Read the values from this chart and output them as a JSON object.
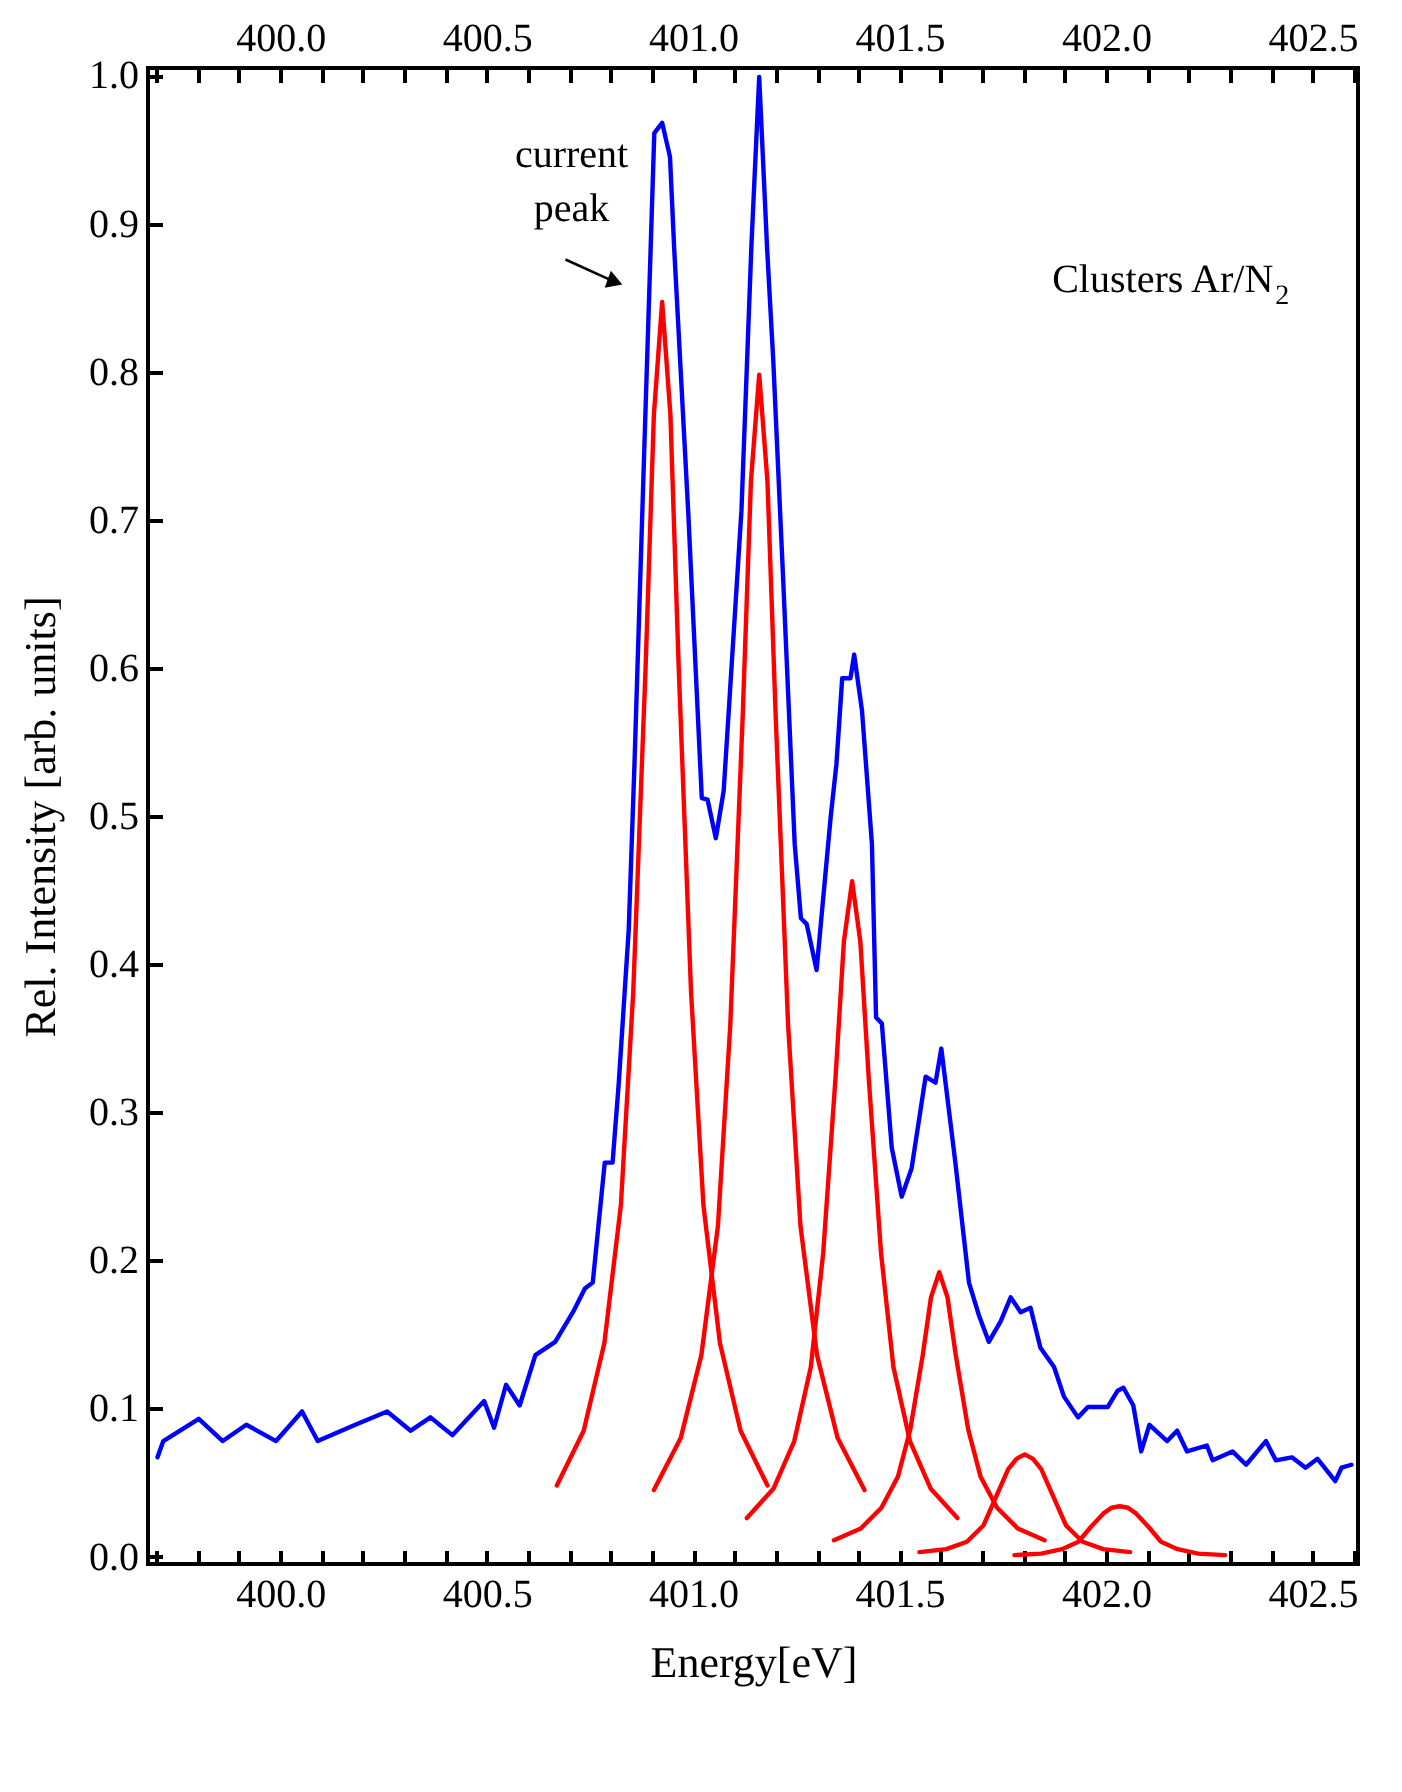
{
  "chart_data": {
    "type": "line",
    "xlabel": "Energy[eV]",
    "ylabel": "Rel. Intensity [arb. units]",
    "xlim": [
      399.68,
      402.61
    ],
    "ylim": [
      -0.005,
      1.005
    ],
    "xticks": [
      {
        "value": 399.7,
        "label": null
      },
      {
        "value": 399.8,
        "label": null
      },
      {
        "value": 399.9,
        "label": null
      },
      {
        "value": 400,
        "label": "400.0"
      },
      {
        "value": 400.1,
        "label": null
      },
      {
        "value": 400.2,
        "label": null
      },
      {
        "value": 400.3,
        "label": null
      },
      {
        "value": 400.4,
        "label": null
      },
      {
        "value": 400.5,
        "label": "400.5"
      },
      {
        "value": 400.6,
        "label": null
      },
      {
        "value": 400.7,
        "label": null
      },
      {
        "value": 400.8,
        "label": null
      },
      {
        "value": 400.9,
        "label": null
      },
      {
        "value": 401,
        "label": "401.0"
      },
      {
        "value": 401.1,
        "label": null
      },
      {
        "value": 401.2,
        "label": null
      },
      {
        "value": 401.3,
        "label": null
      },
      {
        "value": 401.4,
        "label": null
      },
      {
        "value": 401.5,
        "label": "401.5"
      },
      {
        "value": 401.6,
        "label": null
      },
      {
        "value": 401.7,
        "label": null
      },
      {
        "value": 401.8,
        "label": null
      },
      {
        "value": 401.9,
        "label": null
      },
      {
        "value": 402,
        "label": "402.0"
      },
      {
        "value": 402.1,
        "label": null
      },
      {
        "value": 402.2,
        "label": null
      },
      {
        "value": 402.3,
        "label": null
      },
      {
        "value": 402.4,
        "label": null
      },
      {
        "value": 402.5,
        "label": "402.5"
      },
      {
        "value": 402.6,
        "label": null
      }
    ],
    "x2lim": [
      399.68,
      402.61
    ],
    "x2ticks": [
      {
        "value": 399.7,
        "label": null
      },
      {
        "value": 399.8,
        "label": null
      },
      {
        "value": 399.9,
        "label": null
      },
      {
        "value": 400,
        "label": "400.0"
      },
      {
        "value": 400.1,
        "label": null
      },
      {
        "value": 400.2,
        "label": null
      },
      {
        "value": 400.3,
        "label": null
      },
      {
        "value": 400.4,
        "label": null
      },
      {
        "value": 400.5,
        "label": "400.5"
      },
      {
        "value": 400.6,
        "label": null
      },
      {
        "value": 400.7,
        "label": null
      },
      {
        "value": 400.8,
        "label": null
      },
      {
        "value": 400.9,
        "label": null
      },
      {
        "value": 401,
        "label": "401.0"
      },
      {
        "value": 401.1,
        "label": null
      },
      {
        "value": 401.2,
        "label": null
      },
      {
        "value": 401.3,
        "label": null
      },
      {
        "value": 401.4,
        "label": null
      },
      {
        "value": 401.5,
        "label": "401.5"
      },
      {
        "value": 401.6,
        "label": null
      },
      {
        "value": 401.7,
        "label": null
      },
      {
        "value": 401.8,
        "label": null
      },
      {
        "value": 401.9,
        "label": null
      },
      {
        "value": 402,
        "label": "402.0"
      },
      {
        "value": 402.1,
        "label": null
      },
      {
        "value": 402.2,
        "label": null
      },
      {
        "value": 402.3,
        "label": null
      },
      {
        "value": 402.4,
        "label": null
      },
      {
        "value": 402.5,
        "label": "402.5"
      },
      {
        "value": 402.6,
        "label": null
      }
    ],
    "yticks": [
      {
        "value": 0,
        "label": "0.0"
      },
      {
        "value": 0.1,
        "label": "0.1"
      },
      {
        "value": 0.2,
        "label": "0.2"
      },
      {
        "value": 0.3,
        "label": "0.3"
      },
      {
        "value": 0.4,
        "label": "0.4"
      },
      {
        "value": 0.5,
        "label": "0.5"
      },
      {
        "value": 0.6,
        "label": "0.6"
      },
      {
        "value": 0.7,
        "label": "0.7"
      },
      {
        "value": 0.8,
        "label": "0.8"
      },
      {
        "value": 0.9,
        "label": "0.9"
      },
      {
        "value": 1,
        "label": "1.0"
      }
    ],
    "annotations": [
      "current peak",
      "Clusters Ar/N$_{2}$"
    ],
    "series": [
      {
        "color": "#0000ff",
        "x": [
          399.703,
          399.717,
          399.803,
          399.861,
          399.918,
          399.99,
          400.053,
          400.091,
          400.182,
          400.259,
          400.316,
          400.364,
          400.417,
          400.494,
          400.518,
          400.547,
          400.58,
          400.618,
          400.666,
          400.709,
          400.738,
          400.757,
          400.786,
          400.805,
          400.82,
          400.844,
          400.858,
          400.882,
          400.906,
          400.925,
          400.944,
          400.954,
          400.988,
          401.021,
          401.035,
          401.055,
          401.074,
          401.117,
          401.141,
          401.16,
          401.179,
          401.194,
          401.218,
          401.246,
          401.261,
          401.275,
          401.299,
          401.333,
          401.347,
          401.361,
          401.381,
          401.39,
          401.409,
          401.433,
          401.443,
          401.457,
          401.481,
          401.505,
          401.529,
          401.563,
          401.587,
          401.601,
          401.635,
          401.668,
          401.692,
          401.716,
          401.745,
          401.769,
          401.793,
          401.817,
          401.841,
          401.874,
          401.898,
          401.932,
          401.956,
          402.004,
          402.028,
          402.042,
          402.066,
          402.085,
          402.105,
          402.148,
          402.172,
          402.196,
          402.244,
          402.258,
          402.306,
          402.339,
          402.387,
          402.411,
          402.45,
          402.483,
          402.512,
          402.555,
          402.57,
          402.594
        ],
        "values": [
          0.067,
          0.078,
          0.093,
          0.078,
          0.089,
          0.078,
          0.098,
          0.078,
          0.089,
          0.098,
          0.085,
          0.094,
          0.082,
          0.105,
          0.087,
          0.116,
          0.102,
          0.136,
          0.145,
          0.165,
          0.181,
          0.185,
          0.266,
          0.266,
          0.32,
          0.423,
          0.535,
          0.75,
          0.961,
          0.968,
          0.945,
          0.884,
          0.706,
          0.512,
          0.511,
          0.485,
          0.517,
          0.706,
          0.884,
          0.999,
          0.884,
          0.808,
          0.66,
          0.481,
          0.431,
          0.427,
          0.396,
          0.499,
          0.535,
          0.593,
          0.593,
          0.609,
          0.571,
          0.481,
          0.364,
          0.36,
          0.276,
          0.243,
          0.262,
          0.324,
          0.32,
          0.343,
          0.266,
          0.185,
          0.163,
          0.145,
          0.159,
          0.175,
          0.165,
          0.168,
          0.141,
          0.128,
          0.108,
          0.094,
          0.101,
          0.101,
          0.112,
          0.114,
          0.102,
          0.071,
          0.089,
          0.078,
          0.085,
          0.071,
          0.075,
          0.065,
          0.071,
          0.062,
          0.078,
          0.065,
          0.067,
          0.06,
          0.066,
          0.051,
          0.06,
          0.062
        ]
      },
      {
        "color": "#ff0000",
        "x": [
          400.67,
          400.735,
          400.785,
          400.825,
          400.855,
          400.885,
          400.905,
          400.925,
          400.945,
          400.965,
          400.995,
          401.025,
          401.065,
          401.115,
          401.18
        ],
        "values": [
          0.048,
          0.085,
          0.144,
          0.237,
          0.381,
          0.601,
          0.771,
          0.847,
          0.771,
          0.601,
          0.381,
          0.237,
          0.144,
          0.085,
          0.048
        ]
      },
      {
        "color": "#ff0000",
        "x": [
          400.905,
          400.97,
          401.02,
          401.06,
          401.09,
          401.12,
          401.14,
          401.16,
          401.18,
          401.2,
          401.23,
          401.26,
          401.3,
          401.35,
          401.415
        ],
        "values": [
          0.045,
          0.08,
          0.136,
          0.223,
          0.359,
          0.567,
          0.726,
          0.798,
          0.726,
          0.567,
          0.359,
          0.223,
          0.136,
          0.08,
          0.045
        ]
      },
      {
        "color": "#ff0000",
        "x": [
          401.13,
          401.195,
          401.245,
          401.285,
          401.315,
          401.345,
          401.365,
          401.385,
          401.405,
          401.425,
          401.455,
          401.485,
          401.525,
          401.575,
          401.64
        ],
        "values": [
          0.026,
          0.046,
          0.078,
          0.128,
          0.205,
          0.324,
          0.415,
          0.456,
          0.415,
          0.324,
          0.205,
          0.128,
          0.078,
          0.046,
          0.026
        ]
      },
      {
        "color": "#ff0000",
        "x": [
          401.341,
          401.406,
          401.456,
          401.496,
          401.526,
          401.556,
          401.576,
          401.596,
          401.616,
          401.636,
          401.666,
          401.696,
          401.736,
          401.786,
          401.851
        ],
        "values": [
          0.011,
          0.019,
          0.033,
          0.054,
          0.086,
          0.136,
          0.175,
          0.192,
          0.175,
          0.136,
          0.086,
          0.054,
          0.033,
          0.019,
          0.011
        ]
      },
      {
        "color": "#ff0000",
        "x": [
          401.548,
          401.613,
          401.663,
          401.703,
          401.733,
          401.763,
          401.783,
          401.803,
          401.823,
          401.843,
          401.873,
          401.903,
          401.943,
          401.993,
          402.058
        ],
        "values": [
          0.003,
          0.005,
          0.01,
          0.021,
          0.04,
          0.059,
          0.066,
          0.069,
          0.066,
          0.059,
          0.04,
          0.021,
          0.01,
          0.005,
          0.003
        ]
      },
      {
        "color": "#ff0000",
        "x": [
          401.778,
          401.843,
          401.893,
          401.933,
          401.963,
          401.993,
          402.013,
          402.033,
          402.053,
          402.073,
          402.103,
          402.133,
          402.173,
          402.223,
          402.288
        ],
        "values": [
          0.001,
          0.002,
          0.005,
          0.01,
          0.02,
          0.029,
          0.033,
          0.034,
          0.033,
          0.029,
          0.02,
          0.01,
          0.005,
          0.002,
          0.001
        ]
      }
    ]
  }
}
